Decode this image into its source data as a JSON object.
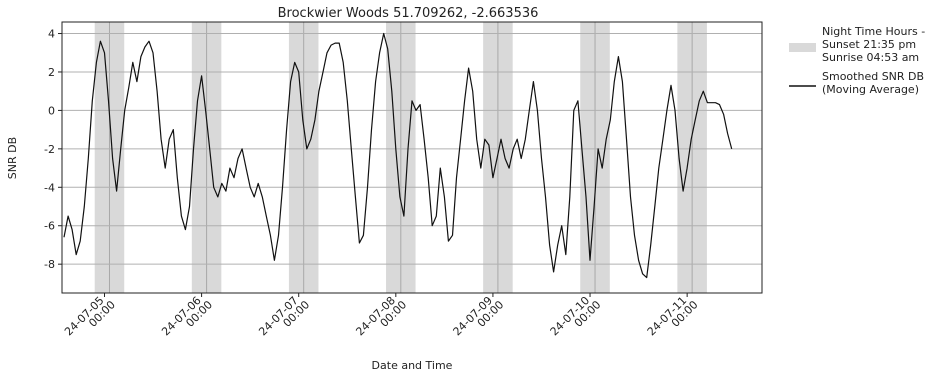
{
  "chart_data": {
    "type": "line",
    "title": "Brockwier Woods 51.709262, -2.663536",
    "xlabel": "Date and Time",
    "ylabel": "SNR DB",
    "ylim": [
      -9.5,
      4.6
    ],
    "yticks": [
      -8,
      -6,
      -4,
      -2,
      0,
      2,
      4
    ],
    "grid": "horizontal",
    "xlim": [
      "2024-07-04 13:30",
      "2024-07-11 18:30"
    ],
    "xticks": [
      {
        "at": "2024-07-05 00:00",
        "line1": "24-07-05",
        "line2": "00:00"
      },
      {
        "at": "2024-07-06 00:00",
        "line1": "24-07-06",
        "line2": "00:00"
      },
      {
        "at": "2024-07-07 00:00",
        "line1": "24-07-07",
        "line2": "00:00"
      },
      {
        "at": "2024-07-08 00:00",
        "line1": "24-07-08",
        "line2": "00:00"
      },
      {
        "at": "2024-07-09 00:00",
        "line1": "24-07-09",
        "line2": "00:00"
      },
      {
        "at": "2024-07-10 00:00",
        "line1": "24-07-10",
        "line2": "00:00"
      },
      {
        "at": "2024-07-11 00:00",
        "line1": "24-07-11",
        "line2": "00:00"
      }
    ],
    "night_periods": [
      [
        "2024-07-04 21:35",
        "2024-07-05 04:53"
      ],
      [
        "2024-07-05 21:35",
        "2024-07-06 04:53"
      ],
      [
        "2024-07-06 21:35",
        "2024-07-07 04:53"
      ],
      [
        "2024-07-07 21:35",
        "2024-07-08 04:53"
      ],
      [
        "2024-07-08 21:35",
        "2024-07-09 04:53"
      ],
      [
        "2024-07-09 21:35",
        "2024-07-10 04:53"
      ],
      [
        "2024-07-10 21:35",
        "2024-07-11 04:53"
      ]
    ],
    "legend_position": "outside-right",
    "legend": {
      "night": [
        "Night Time Hours -",
        "Sunset 21:35 pm",
        "Sunrise 04:53 am"
      ],
      "line": [
        "Smoothed SNR DB",
        "(Moving Average)"
      ]
    },
    "colors": {
      "night": "#d9d9d9",
      "line": "#111111",
      "grid": "#b0b0b0"
    },
    "series": [
      {
        "points": [
          [
            "2024-07-04 14:00",
            -6.6
          ],
          [
            "2024-07-04 15:00",
            -5.5
          ],
          [
            "2024-07-04 16:00",
            -6.2
          ],
          [
            "2024-07-04 17:00",
            -7.5
          ],
          [
            "2024-07-04 18:00",
            -6.8
          ],
          [
            "2024-07-04 19:00",
            -5.0
          ],
          [
            "2024-07-04 20:00",
            -2.5
          ],
          [
            "2024-07-04 21:00",
            0.5
          ],
          [
            "2024-07-04 22:00",
            2.5
          ],
          [
            "2024-07-04 23:00",
            3.6
          ],
          [
            "2024-07-05 00:00",
            3.0
          ],
          [
            "2024-07-05 01:00",
            0.5
          ],
          [
            "2024-07-05 02:00",
            -2.5
          ],
          [
            "2024-07-05 03:00",
            -4.2
          ],
          [
            "2024-07-05 04:00",
            -2.0
          ],
          [
            "2024-07-05 05:00",
            0.0
          ],
          [
            "2024-07-05 06:00",
            1.2
          ],
          [
            "2024-07-05 07:00",
            2.5
          ],
          [
            "2024-07-05 08:00",
            1.5
          ],
          [
            "2024-07-05 09:00",
            2.8
          ],
          [
            "2024-07-05 10:00",
            3.3
          ],
          [
            "2024-07-05 11:00",
            3.6
          ],
          [
            "2024-07-05 12:00",
            3.0
          ],
          [
            "2024-07-05 13:00",
            1.0
          ],
          [
            "2024-07-05 14:00",
            -1.5
          ],
          [
            "2024-07-05 15:00",
            -3.0
          ],
          [
            "2024-07-05 16:00",
            -1.5
          ],
          [
            "2024-07-05 17:00",
            -1.0
          ],
          [
            "2024-07-05 18:00",
            -3.5
          ],
          [
            "2024-07-05 19:00",
            -5.5
          ],
          [
            "2024-07-05 20:00",
            -6.2
          ],
          [
            "2024-07-05 21:00",
            -5.0
          ],
          [
            "2024-07-05 22:00",
            -2.0
          ],
          [
            "2024-07-05 23:00",
            0.5
          ],
          [
            "2024-07-06 00:00",
            1.8
          ],
          [
            "2024-07-06 01:00",
            0.0
          ],
          [
            "2024-07-06 02:00",
            -2.0
          ],
          [
            "2024-07-06 03:00",
            -4.0
          ],
          [
            "2024-07-06 04:00",
            -4.5
          ],
          [
            "2024-07-06 05:00",
            -3.8
          ],
          [
            "2024-07-06 06:00",
            -4.2
          ],
          [
            "2024-07-06 07:00",
            -3.0
          ],
          [
            "2024-07-06 08:00",
            -3.5
          ],
          [
            "2024-07-06 09:00",
            -2.5
          ],
          [
            "2024-07-06 10:00",
            -2.0
          ],
          [
            "2024-07-06 11:00",
            -3.0
          ],
          [
            "2024-07-06 12:00",
            -4.0
          ],
          [
            "2024-07-06 13:00",
            -4.5
          ],
          [
            "2024-07-06 14:00",
            -3.8
          ],
          [
            "2024-07-06 15:00",
            -4.5
          ],
          [
            "2024-07-06 16:00",
            -5.5
          ],
          [
            "2024-07-06 17:00",
            -6.5
          ],
          [
            "2024-07-06 18:00",
            -7.8
          ],
          [
            "2024-07-06 19:00",
            -6.5
          ],
          [
            "2024-07-06 20:00",
            -4.0
          ],
          [
            "2024-07-06 21:00",
            -1.0
          ],
          [
            "2024-07-06 22:00",
            1.5
          ],
          [
            "2024-07-06 23:00",
            2.5
          ],
          [
            "2024-07-07 00:00",
            2.0
          ],
          [
            "2024-07-07 01:00",
            -0.5
          ],
          [
            "2024-07-07 02:00",
            -2.0
          ],
          [
            "2024-07-07 03:00",
            -1.5
          ],
          [
            "2024-07-07 04:00",
            -0.5
          ],
          [
            "2024-07-07 05:00",
            1.0
          ],
          [
            "2024-07-07 06:00",
            2.0
          ],
          [
            "2024-07-07 07:00",
            3.0
          ],
          [
            "2024-07-07 08:00",
            3.4
          ],
          [
            "2024-07-07 09:00",
            3.5
          ],
          [
            "2024-07-07 10:00",
            3.5
          ],
          [
            "2024-07-07 11:00",
            2.5
          ],
          [
            "2024-07-07 12:00",
            0.5
          ],
          [
            "2024-07-07 13:00",
            -2.0
          ],
          [
            "2024-07-07 14:00",
            -4.5
          ],
          [
            "2024-07-07 15:00",
            -6.9
          ],
          [
            "2024-07-07 16:00",
            -6.5
          ],
          [
            "2024-07-07 17:00",
            -4.0
          ],
          [
            "2024-07-07 18:00",
            -1.0
          ],
          [
            "2024-07-07 19:00",
            1.5
          ],
          [
            "2024-07-07 20:00",
            3.0
          ],
          [
            "2024-07-07 21:00",
            4.0
          ],
          [
            "2024-07-07 22:00",
            3.2
          ],
          [
            "2024-07-07 23:00",
            1.0
          ],
          [
            "2024-07-08 00:00",
            -2.0
          ],
          [
            "2024-07-08 01:00",
            -4.5
          ],
          [
            "2024-07-08 02:00",
            -5.5
          ],
          [
            "2024-07-08 03:00",
            -2.0
          ],
          [
            "2024-07-08 04:00",
            0.5
          ],
          [
            "2024-07-08 05:00",
            0.0
          ],
          [
            "2024-07-08 06:00",
            0.3
          ],
          [
            "2024-07-08 07:00",
            -1.5
          ],
          [
            "2024-07-08 08:00",
            -3.5
          ],
          [
            "2024-07-08 09:00",
            -6.0
          ],
          [
            "2024-07-08 10:00",
            -5.5
          ],
          [
            "2024-07-08 11:00",
            -3.0
          ],
          [
            "2024-07-08 12:00",
            -4.5
          ],
          [
            "2024-07-08 13:00",
            -6.8
          ],
          [
            "2024-07-08 14:00",
            -6.5
          ],
          [
            "2024-07-08 15:00",
            -3.5
          ],
          [
            "2024-07-08 16:00",
            -1.5
          ],
          [
            "2024-07-08 17:00",
            0.5
          ],
          [
            "2024-07-08 18:00",
            2.2
          ],
          [
            "2024-07-08 19:00",
            1.0
          ],
          [
            "2024-07-08 20:00",
            -1.5
          ],
          [
            "2024-07-08 21:00",
            -3.0
          ],
          [
            "2024-07-08 22:00",
            -1.5
          ],
          [
            "2024-07-08 23:00",
            -1.8
          ],
          [
            "2024-07-09 00:00",
            -3.5
          ],
          [
            "2024-07-09 01:00",
            -2.5
          ],
          [
            "2024-07-09 02:00",
            -1.5
          ],
          [
            "2024-07-09 03:00",
            -2.5
          ],
          [
            "2024-07-09 04:00",
            -3.0
          ],
          [
            "2024-07-09 05:00",
            -2.0
          ],
          [
            "2024-07-09 06:00",
            -1.5
          ],
          [
            "2024-07-09 07:00",
            -2.5
          ],
          [
            "2024-07-09 08:00",
            -1.5
          ],
          [
            "2024-07-09 09:00",
            0.0
          ],
          [
            "2024-07-09 10:00",
            1.5
          ],
          [
            "2024-07-09 11:00",
            0.0
          ],
          [
            "2024-07-09 12:00",
            -2.5
          ],
          [
            "2024-07-09 13:00",
            -4.5
          ],
          [
            "2024-07-09 14:00",
            -7.0
          ],
          [
            "2024-07-09 15:00",
            -8.4
          ],
          [
            "2024-07-09 16:00",
            -7.0
          ],
          [
            "2024-07-09 17:00",
            -6.0
          ],
          [
            "2024-07-09 18:00",
            -7.5
          ],
          [
            "2024-07-09 19:00",
            -4.5
          ],
          [
            "2024-07-09 20:00",
            0.0
          ],
          [
            "2024-07-09 21:00",
            0.5
          ],
          [
            "2024-07-09 22:00",
            -2.0
          ],
          [
            "2024-07-09 23:00",
            -4.5
          ],
          [
            "2024-07-10 00:00",
            -7.8
          ],
          [
            "2024-07-10 01:00",
            -5.0
          ],
          [
            "2024-07-10 02:00",
            -2.0
          ],
          [
            "2024-07-10 03:00",
            -3.0
          ],
          [
            "2024-07-10 04:00",
            -1.5
          ],
          [
            "2024-07-10 05:00",
            -0.5
          ],
          [
            "2024-07-10 06:00",
            1.5
          ],
          [
            "2024-07-10 07:00",
            2.8
          ],
          [
            "2024-07-10 08:00",
            1.5
          ],
          [
            "2024-07-10 09:00",
            -1.5
          ],
          [
            "2024-07-10 10:00",
            -4.5
          ],
          [
            "2024-07-10 11:00",
            -6.5
          ],
          [
            "2024-07-10 12:00",
            -7.8
          ],
          [
            "2024-07-10 13:00",
            -8.5
          ],
          [
            "2024-07-10 14:00",
            -8.7
          ],
          [
            "2024-07-10 15:00",
            -7.0
          ],
          [
            "2024-07-10 16:00",
            -5.0
          ],
          [
            "2024-07-10 17:00",
            -3.0
          ],
          [
            "2024-07-10 18:00",
            -1.5
          ],
          [
            "2024-07-10 19:00",
            0.0
          ],
          [
            "2024-07-10 20:00",
            1.3
          ],
          [
            "2024-07-10 21:00",
            0.0
          ],
          [
            "2024-07-10 22:00",
            -2.5
          ],
          [
            "2024-07-10 23:00",
            -4.2
          ],
          [
            "2024-07-11 00:00",
            -3.0
          ],
          [
            "2024-07-11 01:00",
            -1.5
          ],
          [
            "2024-07-11 02:00",
            -0.5
          ],
          [
            "2024-07-11 03:00",
            0.5
          ],
          [
            "2024-07-11 04:00",
            1.0
          ],
          [
            "2024-07-11 05:00",
            0.4
          ],
          [
            "2024-07-11 06:00",
            0.4
          ],
          [
            "2024-07-11 07:00",
            0.4
          ],
          [
            "2024-07-11 08:00",
            0.3
          ],
          [
            "2024-07-11 09:00",
            -0.2
          ],
          [
            "2024-07-11 10:00",
            -1.2
          ],
          [
            "2024-07-11 11:00",
            -2.0
          ]
        ]
      }
    ]
  }
}
